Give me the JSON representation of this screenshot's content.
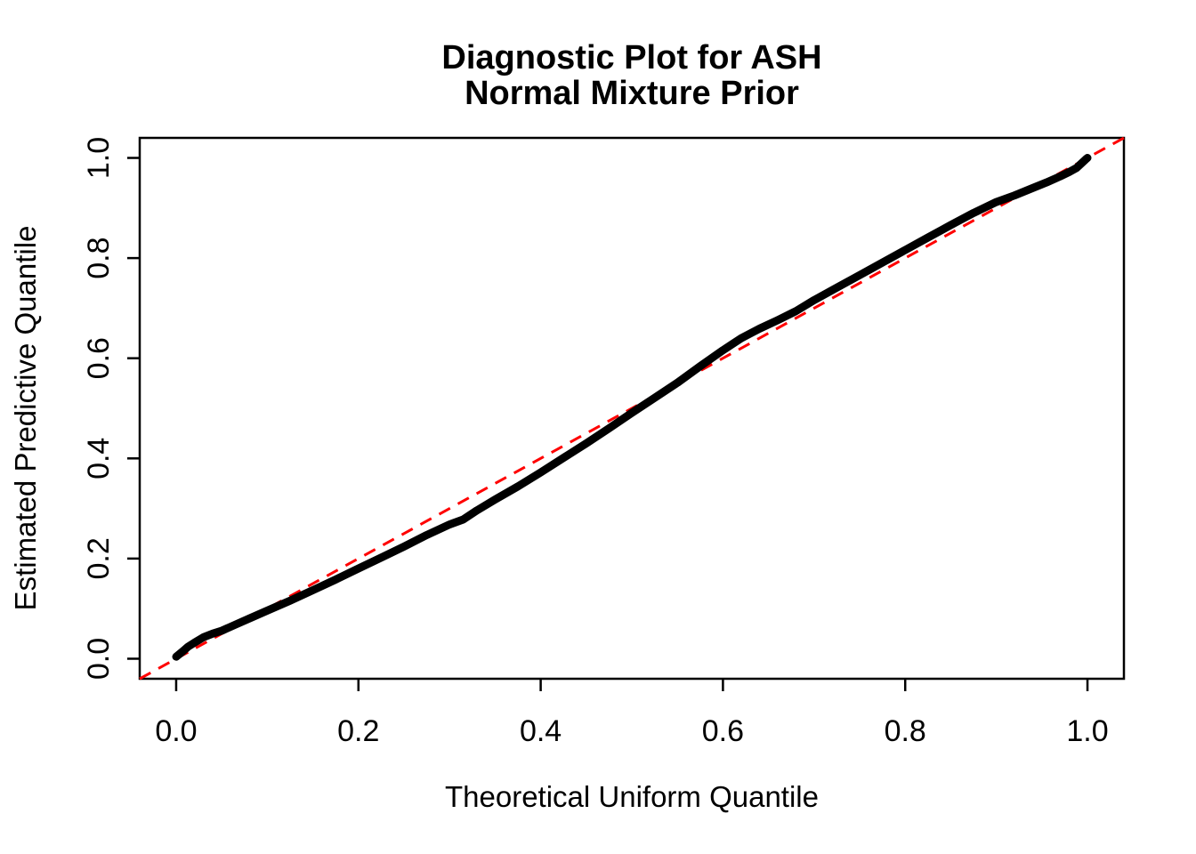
{
  "colors": {
    "background": "#FFFFFF",
    "text": "#000000",
    "curve": "#000000",
    "reference_line": "#FF0000",
    "axis": "#000000"
  },
  "chart_data": {
    "type": "line",
    "title": "Diagnostic Plot for ASH",
    "subtitle": "Normal Mixture Prior",
    "xlabel": "Theoretical Uniform Quantile",
    "ylabel": "Estimated Predictive Quantile",
    "xlim": [
      -0.04,
      1.04
    ],
    "ylim": [
      -0.04,
      1.04
    ],
    "x_ticks": [
      0.0,
      0.2,
      0.4,
      0.6,
      0.8,
      1.0
    ],
    "y_ticks": [
      0.0,
      0.2,
      0.4,
      0.6,
      0.8,
      1.0
    ],
    "x_tick_labels": [
      "0.0",
      "0.2",
      "0.4",
      "0.6",
      "0.8",
      "1.0"
    ],
    "y_tick_labels": [
      "0.0",
      "0.2",
      "0.4",
      "0.6",
      "0.8",
      "1.0"
    ],
    "grid": false,
    "legend_position": "none",
    "series": [
      {
        "name": "estimated-predictive-quantile-curve",
        "style": "thick-point-curve",
        "color": "#000000",
        "points": [
          [
            0.0,
            0.004
          ],
          [
            0.004,
            0.01
          ],
          [
            0.008,
            0.016
          ],
          [
            0.013,
            0.024
          ],
          [
            0.02,
            0.032
          ],
          [
            0.03,
            0.043
          ],
          [
            0.04,
            0.05
          ],
          [
            0.05,
            0.056
          ],
          [
            0.065,
            0.068
          ],
          [
            0.08,
            0.08
          ],
          [
            0.1,
            0.096
          ],
          [
            0.125,
            0.116
          ],
          [
            0.15,
            0.137
          ],
          [
            0.175,
            0.158
          ],
          [
            0.2,
            0.18
          ],
          [
            0.225,
            0.202
          ],
          [
            0.25,
            0.224
          ],
          [
            0.275,
            0.247
          ],
          [
            0.3,
            0.268
          ],
          [
            0.315,
            0.278
          ],
          [
            0.33,
            0.296
          ],
          [
            0.35,
            0.318
          ],
          [
            0.375,
            0.344
          ],
          [
            0.4,
            0.372
          ],
          [
            0.425,
            0.401
          ],
          [
            0.45,
            0.43
          ],
          [
            0.475,
            0.46
          ],
          [
            0.5,
            0.491
          ],
          [
            0.525,
            0.521
          ],
          [
            0.55,
            0.551
          ],
          [
            0.575,
            0.584
          ],
          [
            0.6,
            0.616
          ],
          [
            0.62,
            0.64
          ],
          [
            0.64,
            0.659
          ],
          [
            0.66,
            0.676
          ],
          [
            0.68,
            0.694
          ],
          [
            0.7,
            0.716
          ],
          [
            0.725,
            0.741
          ],
          [
            0.75,
            0.766
          ],
          [
            0.775,
            0.791
          ],
          [
            0.8,
            0.816
          ],
          [
            0.825,
            0.841
          ],
          [
            0.85,
            0.866
          ],
          [
            0.875,
            0.89
          ],
          [
            0.9,
            0.912
          ],
          [
            0.92,
            0.925
          ],
          [
            0.94,
            0.94
          ],
          [
            0.955,
            0.951
          ],
          [
            0.97,
            0.963
          ],
          [
            0.98,
            0.972
          ],
          [
            0.988,
            0.98
          ],
          [
            0.994,
            0.99
          ],
          [
            0.998,
            0.997
          ],
          [
            1.0,
            1.0
          ]
        ]
      },
      {
        "name": "identity-reference-line",
        "style": "dashed-line",
        "color": "#FF0000",
        "points": [
          [
            -0.04,
            -0.04
          ],
          [
            1.04,
            1.04
          ]
        ]
      }
    ]
  }
}
